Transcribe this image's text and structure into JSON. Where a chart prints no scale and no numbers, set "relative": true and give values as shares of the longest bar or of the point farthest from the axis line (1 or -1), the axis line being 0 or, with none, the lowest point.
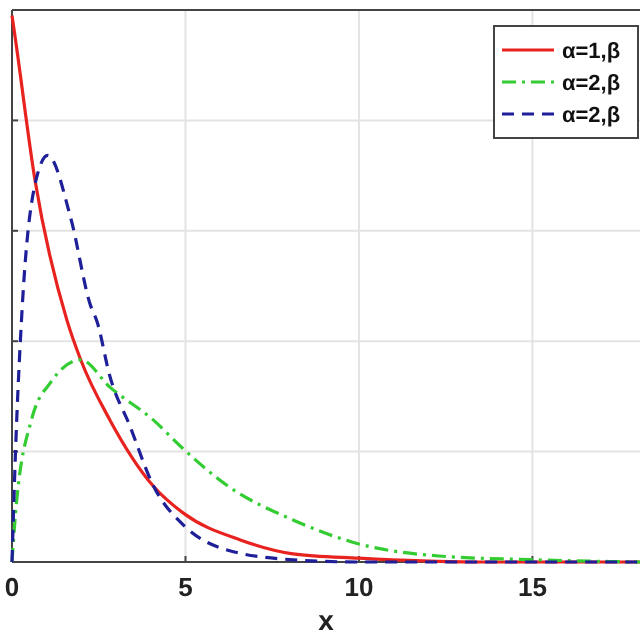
{
  "chart_data": {
    "type": "line",
    "relative": true,
    "xlabel": "x",
    "xlim": [
      0,
      18.1
    ],
    "xticks": [
      0,
      5,
      10,
      15
    ],
    "grid": true,
    "legend": "top right",
    "series": [
      {
        "name": "α=1,β",
        "color": "#e8231f",
        "line_style": "solid",
        "x": [
          0,
          0.1,
          0.66,
          1.58,
          1.98,
          2.82,
          4.07,
          4.97,
          6.6,
          8.1,
          10,
          13.3,
          18.1
        ],
        "values": [
          1,
          0.956,
          0.7,
          0.443,
          0.37,
          0.26,
          0.139,
          0.088,
          0.04,
          0.015,
          0.007,
          0,
          0
        ]
      },
      {
        "name": "α=2,β",
        "color": "#33cc33",
        "line_style": "dashdot",
        "x": [
          0,
          0.1,
          0.56,
          1.13,
          1.98,
          2.82,
          4.07,
          4.97,
          6.2,
          8.1,
          10,
          12.3,
          15.1,
          18.1
        ],
        "values": [
          0,
          0.088,
          0.26,
          0.33,
          0.37,
          0.32,
          0.26,
          0.205,
          0.14,
          0.077,
          0.033,
          0.011,
          0.004,
          0
        ]
      },
      {
        "name": "α=2,β",
        "color": "#1f1f99",
        "line_style": "dashed",
        "x": [
          0,
          0.1,
          0.28,
          0.66,
          1.03,
          1.69,
          2.26,
          2.45,
          2.82,
          3.39,
          4.07,
          4.97,
          6.2,
          8.1,
          10,
          18.1
        ],
        "values": [
          0,
          0.2,
          0.45,
          0.69,
          0.744,
          0.63,
          0.47,
          0.44,
          0.34,
          0.25,
          0.14,
          0.066,
          0.022,
          0.004,
          0,
          0
        ]
      }
    ]
  }
}
